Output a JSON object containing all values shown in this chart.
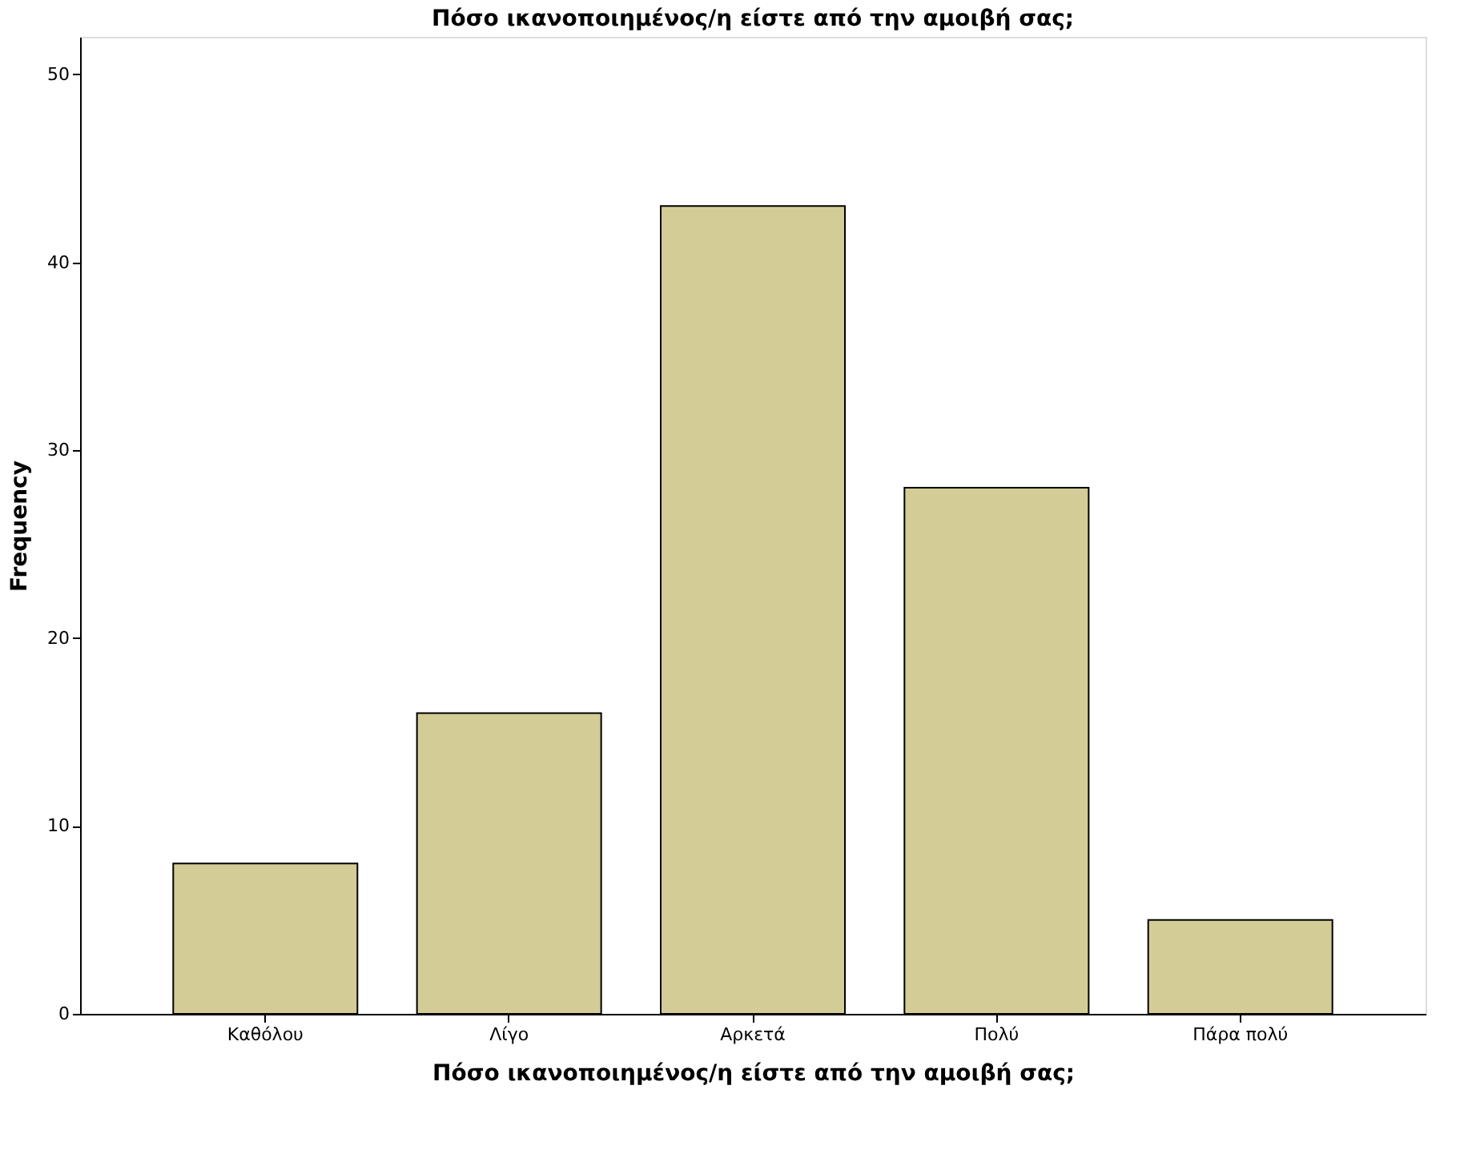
{
  "chart_data": {
    "type": "bar",
    "title": "Πόσο ικανοποιημένος/η είστε από την αμοιβή σας;",
    "xlabel": "Πόσο ικανοποιημένος/η είστε από την αμοιβή σας;",
    "ylabel": "Frequency",
    "categories": [
      "Καθόλου",
      "Λίγο",
      "Αρκετά",
      "Πολύ",
      "Πάρα πολύ"
    ],
    "values": [
      8,
      16,
      43,
      28,
      5
    ],
    "color": "#d3cc96",
    "ylim": [
      0,
      52
    ],
    "yticks": [
      0,
      10,
      20,
      30,
      40,
      50
    ],
    "grid": false
  }
}
